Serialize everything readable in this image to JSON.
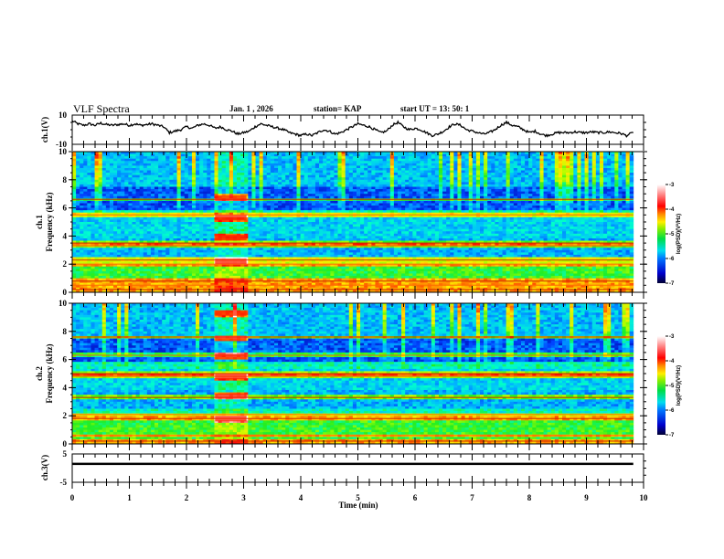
{
  "header": {
    "title": "VLF Spectra",
    "date": "Jan. 1 , 2026",
    "station": "station= KAP",
    "start_ut": "start  UT =   13: 50: 1"
  },
  "chart_data": [
    {
      "type": "line",
      "panel": "ch1-waveform",
      "ylabel": "ch.1(V)",
      "ylim": [
        -10,
        10
      ],
      "y_ticks": [
        "10",
        "-10"
      ],
      "xlim": [
        0,
        10
      ],
      "x_end_data": 9.82,
      "series": [
        {
          "name": "ch.1",
          "x": [
            0,
            0.1,
            0.2,
            0.3,
            0.4,
            0.5,
            0.6,
            0.7,
            0.8,
            0.9,
            1.0,
            1.1,
            1.2,
            1.3,
            1.4,
            1.5,
            1.6,
            1.7,
            1.8,
            1.9,
            2.0,
            2.1,
            2.2,
            2.3,
            2.4,
            2.5,
            2.6,
            2.7,
            2.8,
            2.9,
            3.0,
            3.1,
            3.2,
            3.3,
            3.4,
            3.5,
            3.6,
            3.7,
            3.8,
            3.9,
            4.0,
            4.1,
            4.2,
            4.3,
            4.4,
            4.5,
            4.6,
            4.7,
            4.8,
            4.9,
            5.0,
            5.1,
            5.2,
            5.3,
            5.4,
            5.5,
            5.6,
            5.7,
            5.8,
            5.9,
            6.0,
            6.1,
            6.2,
            6.3,
            6.4,
            6.5,
            6.6,
            6.7,
            6.8,
            6.9,
            7.0,
            7.1,
            7.2,
            7.3,
            7.4,
            7.5,
            7.6,
            7.7,
            7.8,
            7.9,
            8.0,
            8.1,
            8.2,
            8.3,
            8.4,
            8.5,
            8.6,
            8.7,
            8.8,
            8.9,
            9.0,
            9.1,
            9.2,
            9.3,
            9.4,
            9.5,
            9.6,
            9.7,
            9.82
          ],
          "values": [
            6,
            4,
            3,
            4,
            3,
            4.5,
            3.5,
            3,
            3.5,
            4,
            3,
            4,
            3,
            3.5,
            4,
            3,
            2,
            -2,
            -1,
            0,
            2,
            1,
            3,
            4,
            3,
            1,
            2,
            0,
            -1,
            -3,
            -2,
            -1,
            2,
            4,
            3,
            2,
            1,
            0,
            -2,
            -3,
            -4,
            -3,
            -4,
            -2,
            0,
            -1,
            -3,
            -2,
            0,
            2,
            4,
            3,
            2,
            0,
            -2,
            -1,
            3,
            5,
            2,
            0,
            1,
            0,
            -2,
            -4,
            -3,
            -1,
            2,
            4,
            3,
            0,
            -1,
            -2,
            -3,
            -2,
            0,
            3,
            5,
            3,
            2,
            0,
            -2,
            -1,
            -3,
            -4,
            -3,
            -2,
            -2,
            -2,
            -1.5,
            -2,
            -2,
            -1.5,
            -2,
            -2,
            -1.5,
            -2,
            -2.5,
            -4,
            -2
          ]
        }
      ]
    },
    {
      "type": "heatmap",
      "panel": "ch1-spectrogram",
      "ylabel": "ch.1\nFrequency  (kHz)",
      "ylim": [
        0,
        10
      ],
      "y_ticks": [
        "0",
        "2",
        "4",
        "6",
        "8",
        "10"
      ],
      "xlim": [
        0,
        10
      ],
      "x_end_data": 9.82,
      "colorbar": {
        "label": "log(PSD)(V²/Hz)",
        "range": [
          -7,
          -3
        ],
        "ticks": [
          "-3",
          "-4",
          "-5",
          "-6",
          "-7"
        ]
      },
      "strong_bands_khz": [
        0.2,
        0.5,
        0.8,
        2.0,
        2.3,
        3.3,
        3.5,
        5.5,
        6.6
      ],
      "burst_interval_min": [
        2.5,
        3.05
      ],
      "burst_bands_khz": [
        2.2,
        3.9,
        5.3,
        6.7
      ]
    },
    {
      "type": "heatmap",
      "panel": "ch2-spectrogram",
      "ylabel": "ch.2\nFrequency  (kHz)",
      "ylim": [
        0,
        10
      ],
      "y_ticks": [
        "0",
        "2",
        "4",
        "6",
        "8",
        "10"
      ],
      "xlim": [
        0,
        10
      ],
      "x_end_data": 9.82,
      "colorbar": {
        "label": "log(PSD)(V²/Hz)",
        "range": [
          -7,
          -3
        ],
        "ticks": [
          "-3",
          "-4",
          "-5",
          "-6",
          "-7"
        ]
      },
      "strong_bands_khz": [
        0.2,
        0.6,
        1.8,
        2.1,
        3.3,
        4.8,
        5.0,
        6.3,
        7.6
      ],
      "burst_interval_min": [
        2.5,
        3.05
      ],
      "burst_bands_khz": [
        1.8,
        3.4,
        4.8,
        6.2,
        7.5,
        9.3
      ]
    },
    {
      "type": "line",
      "panel": "ch3-waveform",
      "ylabel": "ch.3(V)",
      "ylim": [
        -5,
        5
      ],
      "y_ticks": [
        "5",
        "-5"
      ],
      "xlim": [
        0,
        10
      ],
      "x_end_data": 9.82,
      "series": [
        {
          "name": "ch.3",
          "x": [
            0,
            9.82
          ],
          "values": [
            1.5,
            1.5
          ],
          "band_halfwidth": 0.4
        }
      ],
      "xlabel": "Time  (min)",
      "x_ticks": [
        "0",
        "1",
        "2",
        "3",
        "4",
        "5",
        "6",
        "7",
        "8",
        "9",
        "10"
      ]
    }
  ],
  "colors": {
    "colormap": [
      "#000033",
      "#0000aa",
      "#0044ff",
      "#00bbff",
      "#00ffcc",
      "#22ee22",
      "#aaff00",
      "#ffee00",
      "#ff8800",
      "#ff0000",
      "#ff6666",
      "#ffdddd",
      "#ffffff"
    ]
  }
}
